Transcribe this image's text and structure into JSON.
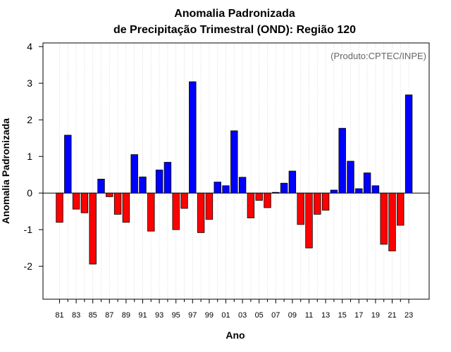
{
  "chart_data": {
    "type": "bar",
    "title_line1": "Anomalia Padronizada",
    "title_line2": "de Precipitação Trimestral (OND): Região 120",
    "xlabel": "Ano",
    "ylabel": "Anomalia Padronizada",
    "credit": "(Produto:CPTEC/INPE)",
    "ylim": [
      -2.9,
      4.1
    ],
    "yticks": [
      -2,
      -1,
      0,
      1,
      2,
      3,
      4
    ],
    "ytick_labels": [
      "-2",
      "-1",
      "0",
      "1",
      "2",
      "3",
      "4"
    ],
    "x_tick_labels": [
      "81",
      "83",
      "85",
      "87",
      "89",
      "91",
      "93",
      "95",
      "97",
      "99",
      "01",
      "03",
      "05",
      "07",
      "09",
      "11",
      "13",
      "15",
      "17",
      "19",
      "21",
      "23"
    ],
    "positive_color": "#0000ff",
    "negative_color": "#ff0000",
    "categories": [
      "1981",
      "1982",
      "1983",
      "1984",
      "1985",
      "1986",
      "1987",
      "1988",
      "1989",
      "1990",
      "1991",
      "1992",
      "1993",
      "1994",
      "1995",
      "1996",
      "1997",
      "1998",
      "1999",
      "2000",
      "2001",
      "2002",
      "2003",
      "2004",
      "2005",
      "2006",
      "2007",
      "2008",
      "2009",
      "2010",
      "2011",
      "2012",
      "2013",
      "2014",
      "2015",
      "2016",
      "2017",
      "2018",
      "2019",
      "2020",
      "2021",
      "2022",
      "2023"
    ],
    "values": [
      -0.8,
      1.58,
      -0.44,
      -0.54,
      -1.94,
      0.38,
      -0.1,
      -0.58,
      -0.8,
      1.05,
      0.44,
      -1.04,
      0.63,
      0.84,
      -1.0,
      -0.42,
      3.04,
      -1.08,
      -0.72,
      0.3,
      0.2,
      1.7,
      0.43,
      -0.68,
      -0.2,
      -0.4,
      0.02,
      0.27,
      0.6,
      -0.86,
      -1.5,
      -0.58,
      -0.47,
      0.08,
      1.77,
      0.87,
      0.12,
      0.55,
      0.2,
      -1.4,
      -1.58,
      -0.88,
      2.68
    ]
  }
}
